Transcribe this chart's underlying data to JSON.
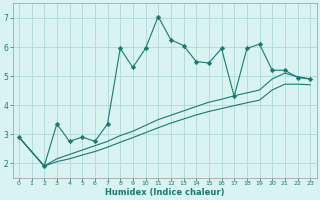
{
  "xlabel": "Humidex (Indice chaleur)",
  "background_color": "#d9f2f2",
  "grid_color": "#b0d8d8",
  "line_color": "#1a7a6e",
  "xlim": [
    -0.5,
    23.5
  ],
  "ylim": [
    1.5,
    7.5
  ],
  "xticks": [
    0,
    1,
    2,
    3,
    4,
    5,
    6,
    7,
    8,
    9,
    10,
    11,
    12,
    13,
    14,
    15,
    16,
    17,
    18,
    19,
    20,
    21,
    22,
    23
  ],
  "yticks": [
    2,
    3,
    4,
    5,
    6,
    7
  ],
  "series1_x": [
    0,
    2,
    3,
    4,
    5,
    6,
    7,
    8,
    9,
    10,
    11,
    12,
    13,
    14,
    15,
    16,
    17,
    18,
    19,
    20,
    21,
    22,
    23
  ],
  "series1_y": [
    2.9,
    1.9,
    3.35,
    2.75,
    2.9,
    2.75,
    3.35,
    5.95,
    5.3,
    5.95,
    7.05,
    6.25,
    6.05,
    5.5,
    5.45,
    5.95,
    4.3,
    5.95,
    6.1,
    5.2,
    5.2,
    4.95,
    4.9
  ],
  "series2_x": [
    0,
    2,
    3,
    4,
    5,
    6,
    7,
    8,
    9,
    10,
    11,
    12,
    13,
    14,
    15,
    16,
    17,
    18,
    19,
    20,
    21,
    22,
    23
  ],
  "series2_y": [
    2.9,
    1.9,
    2.15,
    2.3,
    2.45,
    2.6,
    2.75,
    2.95,
    3.1,
    3.3,
    3.5,
    3.65,
    3.8,
    3.95,
    4.1,
    4.2,
    4.32,
    4.42,
    4.52,
    4.9,
    5.1,
    4.98,
    4.9
  ],
  "series3_x": [
    0,
    2,
    3,
    4,
    5,
    6,
    7,
    8,
    9,
    10,
    11,
    12,
    13,
    14,
    15,
    16,
    17,
    18,
    19,
    20,
    21,
    22,
    23
  ],
  "series3_y": [
    2.9,
    1.9,
    2.05,
    2.15,
    2.28,
    2.4,
    2.55,
    2.72,
    2.88,
    3.05,
    3.22,
    3.38,
    3.52,
    3.66,
    3.78,
    3.88,
    3.98,
    4.08,
    4.17,
    4.52,
    4.72,
    4.72,
    4.7
  ]
}
